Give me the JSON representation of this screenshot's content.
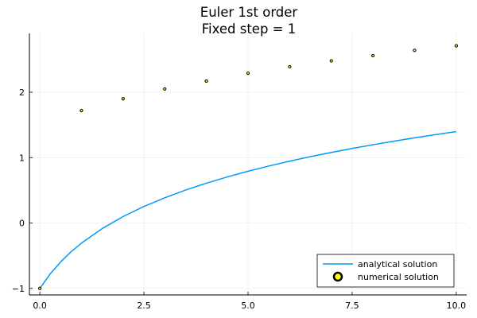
{
  "chart_data": {
    "type": "line",
    "title": "Euler 1st order",
    "subtitle": "Fixed step = 1",
    "xlabel": "",
    "ylabel": "",
    "xlim": [
      -0.25,
      10.25
    ],
    "ylim": [
      -1.1,
      2.9
    ],
    "x_ticks": [
      0,
      2.5,
      5,
      7.5,
      10
    ],
    "x_tick_labels": [
      "0.0",
      "2.5",
      "5.0",
      "7.5",
      "10.0"
    ],
    "y_ticks": [
      -1,
      0,
      1,
      2
    ],
    "y_tick_labels": [
      "−1",
      "0",
      "1",
      "2"
    ],
    "grid": true,
    "legend_position": "bottom-right",
    "series": [
      {
        "name": "analytical solution",
        "kind": "line",
        "color": "#009af9",
        "function": "y = log(1 + x) - 1",
        "x": [
          0,
          0.25,
          0.5,
          0.75,
          1,
          1.5,
          2,
          2.5,
          3,
          3.5,
          4,
          4.5,
          5,
          5.5,
          6,
          6.5,
          7,
          7.5,
          8,
          8.5,
          9,
          9.5,
          10
        ],
        "y": [
          -1.0,
          -0.777,
          -0.595,
          -0.44,
          -0.307,
          -0.084,
          0.099,
          0.253,
          0.386,
          0.504,
          0.609,
          0.705,
          0.792,
          0.872,
          0.946,
          1.015,
          1.079,
          1.14,
          1.197,
          1.251,
          1.303,
          1.351,
          1.398
        ]
      },
      {
        "name": "numerical solution",
        "kind": "scatter",
        "color": "#ffff00",
        "edge_color": "#000000",
        "x": [
          0,
          1,
          2,
          3,
          4,
          5,
          6,
          7,
          8,
          9,
          10
        ],
        "y": [
          -1.0,
          1.72,
          1.9,
          2.05,
          2.17,
          2.29,
          2.39,
          2.48,
          2.56,
          2.64,
          2.71
        ]
      }
    ]
  }
}
